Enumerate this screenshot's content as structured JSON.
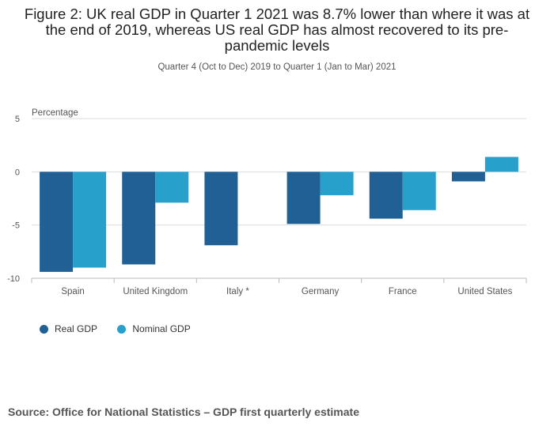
{
  "header": {
    "title": "Figure 2: UK real GDP in Quarter 1 2021 was 8.7% lower than where it was at the end of 2019, whereas US real GDP has almost recovered to its pre-pandemic levels",
    "subtitle": "Quarter 4 (Oct to Dec) 2019 to Quarter 1 (Jan to Mar) 2021"
  },
  "legend": {
    "real_label": "Real GDP",
    "nominal_label": "Nominal GDP"
  },
  "footer": {
    "source": "Source: Office for National Statistics – GDP first quarterly estimate"
  },
  "colors": {
    "real": "#206095",
    "nominal": "#27a0cc"
  },
  "chart_data": {
    "type": "bar",
    "ylabel": "Percentage",
    "ylim": [
      -10,
      5
    ],
    "yticks": [
      5,
      0,
      -5,
      -10
    ],
    "grid": true,
    "categories": [
      "Spain",
      "United Kingdom",
      "Italy *",
      "Germany",
      "France",
      "United States"
    ],
    "series": [
      {
        "name": "Real GDP",
        "values": [
          -9.4,
          -8.7,
          -6.9,
          -4.9,
          -4.4,
          -0.9
        ]
      },
      {
        "name": "Nominal GDP",
        "values": [
          -9.0,
          -2.9,
          null,
          -2.2,
          -3.6,
          1.4
        ]
      }
    ]
  }
}
